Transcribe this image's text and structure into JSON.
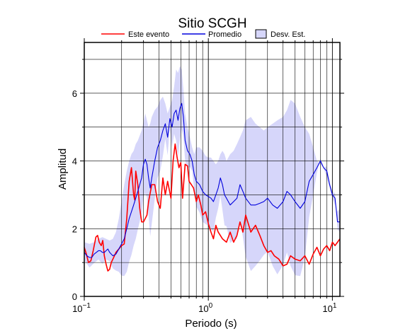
{
  "chart_data": {
    "type": "line",
    "title": "Sitio SCGH",
    "xlabel": "Periodo (s)",
    "ylabel": "Amplitud",
    "x_scale": "log",
    "xlim": [
      0.1,
      11.5
    ],
    "ylim": [
      0,
      7.5
    ],
    "x_ticks": [
      {
        "value": 0.1,
        "base": "10",
        "exp": "−1"
      },
      {
        "value": 1,
        "base": "10",
        "exp": "0"
      },
      {
        "value": 10,
        "base": "10",
        "exp": "1"
      }
    ],
    "y_ticks": [
      {
        "value": 0,
        "label": "0"
      },
      {
        "value": 2,
        "label": "2"
      },
      {
        "value": 4,
        "label": "4"
      },
      {
        "value": 6,
        "label": "6"
      }
    ],
    "grid": true,
    "legend_position": "top",
    "legend": [
      {
        "name": "Este evento",
        "kind": "line",
        "color": "#ff0000"
      },
      {
        "name": "Promedio",
        "kind": "line",
        "color": "#0000dd"
      },
      {
        "name": "Desv. Est.",
        "kind": "band",
        "color": "#d6d6fa"
      }
    ],
    "series": [
      {
        "name": "Este evento",
        "color": "#ff0000",
        "x": [
          0.1,
          0.104,
          0.108,
          0.113,
          0.118,
          0.124,
          0.128,
          0.132,
          0.137,
          0.141,
          0.145,
          0.15,
          0.155,
          0.16,
          0.165,
          0.17,
          0.175,
          0.18,
          0.19,
          0.2,
          0.21,
          0.22,
          0.23,
          0.24,
          0.25,
          0.255,
          0.26,
          0.27,
          0.28,
          0.29,
          0.3,
          0.31,
          0.32,
          0.33,
          0.35,
          0.37,
          0.39,
          0.41,
          0.43,
          0.45,
          0.47,
          0.5,
          0.52,
          0.54,
          0.56,
          0.58,
          0.6,
          0.62,
          0.65,
          0.68,
          0.7,
          0.73,
          0.76,
          0.8,
          0.83,
          0.87,
          0.9,
          0.95,
          1.0,
          1.05,
          1.1,
          1.15,
          1.2,
          1.3,
          1.4,
          1.5,
          1.6,
          1.7,
          1.8,
          1.9,
          2.0,
          2.2,
          2.4,
          2.6,
          2.8,
          3.0,
          3.2,
          3.4,
          3.7,
          4.0,
          4.3,
          4.6,
          5.0,
          5.5,
          6.0,
          6.5,
          7.0,
          7.5,
          8.0,
          8.5,
          9.0,
          9.5,
          10.0,
          10.5,
          11.0,
          11.5
        ],
        "y": [
          1.45,
          1.25,
          1.0,
          1.05,
          1.35,
          1.75,
          1.8,
          1.6,
          1.5,
          1.65,
          1.2,
          0.95,
          0.75,
          0.8,
          1.0,
          1.1,
          1.2,
          1.3,
          1.4,
          1.5,
          1.55,
          2.3,
          3.4,
          3.8,
          3.0,
          2.85,
          3.7,
          3.3,
          2.6,
          2.2,
          2.2,
          2.3,
          2.4,
          2.8,
          3.3,
          3.3,
          2.8,
          2.6,
          3.5,
          3.0,
          3.4,
          2.9,
          4.0,
          4.5,
          4.1,
          3.8,
          3.95,
          2.9,
          3.9,
          3.85,
          3.4,
          3.3,
          3.2,
          2.8,
          3.0,
          2.7,
          2.4,
          2.5,
          2.15,
          1.9,
          1.7,
          2.1,
          1.9,
          1.7,
          1.6,
          1.9,
          1.6,
          1.8,
          2.2,
          1.9,
          2.4,
          1.9,
          2.1,
          1.8,
          1.5,
          1.3,
          1.35,
          1.2,
          1.1,
          0.9,
          0.95,
          1.2,
          1.1,
          1.05,
          1.2,
          0.95,
          1.25,
          1.45,
          1.2,
          1.4,
          1.5,
          1.35,
          1.6,
          1.5,
          1.6,
          1.7
        ]
      },
      {
        "name": "Promedio",
        "color": "#0000dd",
        "x": [
          0.1,
          0.105,
          0.11,
          0.115,
          0.12,
          0.125,
          0.13,
          0.135,
          0.14,
          0.145,
          0.15,
          0.155,
          0.16,
          0.17,
          0.18,
          0.19,
          0.2,
          0.21,
          0.22,
          0.23,
          0.24,
          0.25,
          0.26,
          0.27,
          0.28,
          0.29,
          0.3,
          0.31,
          0.32,
          0.33,
          0.34,
          0.35,
          0.37,
          0.39,
          0.41,
          0.43,
          0.45,
          0.47,
          0.49,
          0.51,
          0.53,
          0.55,
          0.57,
          0.59,
          0.61,
          0.63,
          0.65,
          0.68,
          0.71,
          0.74,
          0.77,
          0.8,
          0.85,
          0.9,
          0.95,
          1.0,
          1.05,
          1.1,
          1.15,
          1.2,
          1.25,
          1.3,
          1.35,
          1.4,
          1.5,
          1.6,
          1.7,
          1.8,
          1.9,
          2.0,
          2.2,
          2.4,
          2.6,
          2.8,
          3.0,
          3.3,
          3.6,
          4.0,
          4.3,
          4.6,
          5.0,
          5.5,
          6.0,
          6.5,
          7.0,
          7.5,
          8.0,
          8.5,
          9.0,
          9.5,
          10.0,
          10.5,
          11.0,
          11.5
        ],
        "y": [
          1.3,
          1.2,
          1.15,
          1.15,
          1.25,
          1.3,
          1.35,
          1.35,
          1.3,
          1.3,
          1.35,
          1.4,
          1.3,
          1.2,
          1.25,
          1.4,
          1.55,
          1.7,
          2.0,
          2.3,
          2.5,
          2.7,
          2.9,
          3.1,
          3.3,
          3.5,
          3.9,
          4.05,
          3.9,
          3.5,
          3.2,
          3.5,
          4.0,
          4.4,
          4.6,
          4.9,
          5.1,
          4.7,
          5.25,
          5.0,
          5.4,
          5.5,
          5.2,
          5.55,
          5.7,
          5.3,
          4.6,
          4.3,
          4.2,
          4.0,
          3.6,
          3.4,
          3.3,
          3.1,
          3.0,
          2.95,
          2.9,
          2.8,
          3.0,
          3.2,
          3.5,
          3.3,
          3.0,
          2.9,
          2.7,
          2.8,
          2.9,
          3.3,
          3.1,
          2.9,
          2.7,
          2.7,
          2.75,
          2.8,
          2.9,
          2.7,
          2.6,
          2.8,
          3.1,
          3.0,
          2.8,
          2.6,
          2.8,
          3.4,
          3.6,
          3.8,
          4.0,
          3.8,
          3.7,
          3.3,
          3.0,
          2.9,
          2.2,
          2.2
        ]
      }
    ],
    "std_band": {
      "name": "Desv. Est.",
      "color": "#d6d6fa",
      "x": [
        0.1,
        0.11,
        0.12,
        0.13,
        0.14,
        0.15,
        0.16,
        0.17,
        0.18,
        0.19,
        0.2,
        0.21,
        0.22,
        0.23,
        0.24,
        0.25,
        0.26,
        0.27,
        0.28,
        0.29,
        0.3,
        0.31,
        0.32,
        0.33,
        0.34,
        0.35,
        0.37,
        0.39,
        0.41,
        0.43,
        0.45,
        0.47,
        0.49,
        0.51,
        0.53,
        0.55,
        0.57,
        0.59,
        0.61,
        0.63,
        0.65,
        0.68,
        0.71,
        0.74,
        0.77,
        0.8,
        0.85,
        0.9,
        0.95,
        1.0,
        1.05,
        1.1,
        1.15,
        1.2,
        1.25,
        1.3,
        1.35,
        1.4,
        1.5,
        1.6,
        1.7,
        1.8,
        1.9,
        2.0,
        2.2,
        2.4,
        2.6,
        2.8,
        3.0,
        3.3,
        3.6,
        4.0,
        4.3,
        4.6,
        5.0,
        5.5,
        6.0,
        6.5,
        7.0,
        7.5,
        8.0,
        8.5,
        9.0,
        9.5,
        10.0,
        10.5,
        11.0,
        11.5
      ],
      "upper": [
        1.6,
        1.55,
        1.6,
        1.7,
        1.75,
        1.7,
        1.65,
        1.7,
        1.9,
        2.3,
        2.8,
        3.3,
        3.7,
        4.0,
        4.2,
        4.3,
        4.5,
        4.6,
        4.75,
        4.9,
        5.15,
        5.4,
        5.2,
        5.0,
        5.1,
        5.3,
        5.5,
        5.6,
        5.8,
        5.9,
        5.7,
        5.4,
        5.6,
        5.8,
        6.2,
        6.7,
        6.6,
        6.8,
        6.7,
        6.1,
        5.4,
        5.0,
        4.7,
        4.4,
        4.2,
        4.4,
        4.4,
        4.3,
        4.15,
        4.1,
        4.1,
        4.0,
        3.9,
        4.0,
        4.2,
        4.3,
        4.2,
        4.0,
        4.2,
        4.3,
        4.5,
        4.7,
        4.9,
        5.2,
        5.3,
        5.1,
        5.0,
        4.9,
        5.0,
        5.1,
        5.2,
        5.3,
        5.5,
        5.8,
        5.7,
        5.3,
        5.0,
        4.8,
        4.4,
        4.0,
        3.9,
        3.8,
        3.5,
        3.2,
        2.9,
        2.7,
        2.5,
        2.6
      ]
    }
  }
}
